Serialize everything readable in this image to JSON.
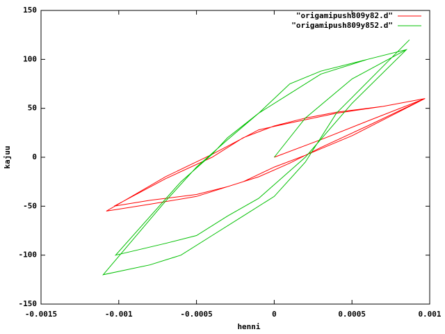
{
  "chart_data": {
    "type": "line",
    "xlabel": "henni",
    "ylabel": "kajuu",
    "xlim": [
      -0.0015,
      0.001
    ],
    "xticks": [
      -0.0015,
      -0.001,
      -0.0005,
      0,
      0.0005,
      0.001
    ],
    "ylim": [
      -150,
      150
    ],
    "yticks": [
      -150,
      -100,
      -50,
      0,
      50,
      100,
      150
    ],
    "grid": false,
    "legend": "top-right",
    "series": [
      {
        "name": "\"origamipush809y82.d\"",
        "color": "#ff0000",
        "x": [
          0,
          0.0003,
          0.0006,
          0.00097,
          0.0007,
          0.0004,
          0.0002,
          0,
          -0.0002,
          -0.0004,
          -0.0007,
          -0.00103,
          -0.0008,
          -0.0005,
          -0.0003,
          -0.0001,
          0.0001,
          0.0003,
          0.0006,
          0.00097,
          0.0007,
          0.0004,
          0.0001,
          -0.0001,
          -0.0004,
          -0.0007,
          -0.00108,
          -0.0008,
          -0.0005,
          -0.0002,
          0,
          0.0002,
          0.0005,
          0.00097
        ],
        "values": [
          0,
          18,
          37,
          60,
          52,
          46,
          40,
          32,
          20,
          0,
          -22,
          -50,
          -44,
          -38,
          -30,
          -20,
          -6,
          10,
          32,
          60,
          52,
          45,
          35,
          28,
          3,
          -20,
          -55,
          -48,
          -40,
          -25,
          -10,
          2,
          22,
          60
        ]
      },
      {
        "name": "\"origamipush809y852.d\"",
        "color": "#00c000",
        "x": [
          0,
          0.0002,
          0.0005,
          0.00085,
          0.0006,
          0.0003,
          0.0001,
          0,
          -0.0001,
          -0.0003,
          -0.0004,
          -0.0006,
          -0.00102,
          -0.0007,
          -0.0005,
          -0.0003,
          -0.0001,
          0,
          0.0002,
          0.0005,
          0.00085,
          0.0006,
          0.0003,
          0.0001,
          -0.0001,
          -0.0003,
          -0.0005,
          -0.0007,
          -0.0011,
          -0.0008,
          -0.0006,
          -0.0004,
          -0.0002,
          0,
          0.0002,
          0.0004,
          0.00087
        ],
        "values": [
          0,
          40,
          80,
          110,
          100,
          88,
          75,
          60,
          45,
          20,
          3,
          -25,
          -100,
          -88,
          -80,
          -60,
          -42,
          -28,
          0,
          55,
          110,
          100,
          85,
          65,
          45,
          18,
          -10,
          -45,
          -120,
          -110,
          -100,
          -80,
          -60,
          -40,
          -5,
          45,
          120
        ]
      }
    ]
  }
}
